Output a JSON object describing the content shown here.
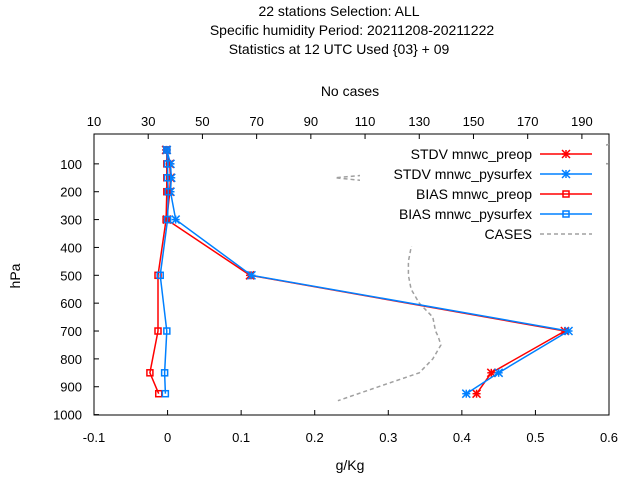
{
  "chart_data": {
    "type": "line",
    "title_lines": [
      "22 stations Selection: ALL",
      "Specific humidity  Period: 20211208-20211222",
      "Statistics at 12 UTC  Used {03} + 09"
    ],
    "xlabel": "g/Kg",
    "ylabel": "hPa",
    "x2label": "No cases",
    "xlim": [
      -0.1,
      0.6
    ],
    "ylim": [
      1000,
      30
    ],
    "y_reversed": true,
    "x2lim": [
      10,
      200
    ],
    "x_ticks": [
      "-0.1",
      "0",
      "0.1",
      "0.2",
      "0.3",
      "0.4",
      "0.5",
      "0.6"
    ],
    "x_tick_values": [
      -0.1,
      0,
      0.1,
      0.2,
      0.3,
      0.4,
      0.5,
      0.6
    ],
    "y_ticks": [
      "100",
      "200",
      "300",
      "400",
      "500",
      "600",
      "700",
      "800",
      "900",
      "1000"
    ],
    "y_tick_values": [
      100,
      200,
      300,
      400,
      500,
      600,
      700,
      800,
      900,
      1000
    ],
    "x2_ticks": [
      "10",
      "30",
      "50",
      "70",
      "90",
      "110",
      "130",
      "150",
      "170",
      "190"
    ],
    "x2_tick_values": [
      10,
      30,
      50,
      70,
      90,
      110,
      130,
      150,
      170,
      190
    ],
    "legend_position": "top-right",
    "grid": false,
    "series": [
      {
        "name": "STDV mnwc_preop",
        "color": "#ff0000",
        "marker": "star",
        "dash": false,
        "x": [
          -0.002,
          0.003,
          0.004,
          0.003,
          -0.001,
          0.112,
          0.54,
          0.44,
          0.42
        ],
        "y": [
          50,
          100,
          150,
          200,
          300,
          500,
          700,
          850,
          925
        ]
      },
      {
        "name": "STDV mnwc_pysurfex",
        "color": "#0080ff",
        "marker": "star",
        "dash": false,
        "x": [
          -0.001,
          0.004,
          0.005,
          0.004,
          0.011,
          0.114,
          0.545,
          0.45,
          0.406
        ],
        "y": [
          50,
          100,
          150,
          200,
          300,
          500,
          700,
          850,
          925
        ]
      },
      {
        "name": "BIAS mnwc_preop",
        "color": "#ff0000",
        "marker": "square",
        "dash": false,
        "x": [
          -0.001,
          -0.001,
          -0.001,
          -0.001,
          -0.002,
          -0.013,
          -0.013,
          -0.024,
          -0.012
        ],
        "y": [
          50,
          100,
          150,
          200,
          300,
          500,
          700,
          850,
          925
        ]
      },
      {
        "name": "BIAS mnwc_pysurfex",
        "color": "#0080ff",
        "marker": "square",
        "dash": false,
        "x": [
          -0.001,
          0.0,
          0.0,
          0.001,
          0.0,
          -0.01,
          -0.001,
          -0.004,
          -0.003
        ],
        "y": [
          50,
          100,
          150,
          200,
          300,
          500,
          700,
          850,
          925
        ]
      },
      {
        "name": "CASES",
        "color": "#a0a0a0",
        "marker": "none",
        "dash": true,
        "axis": "x2",
        "x": [
          200,
          175,
          200,
          150,
          99,
          130,
          130,
          128,
          126,
          126,
          127,
          130,
          135,
          136,
          137,
          138,
          135,
          130,
          115,
          100
        ],
        "y": [
          30,
          80,
          100,
          105,
          150,
          180,
          250,
          350,
          450,
          500,
          550,
          600,
          650,
          700,
          720,
          750,
          800,
          850,
          900,
          950
        ]
      }
    ]
  }
}
